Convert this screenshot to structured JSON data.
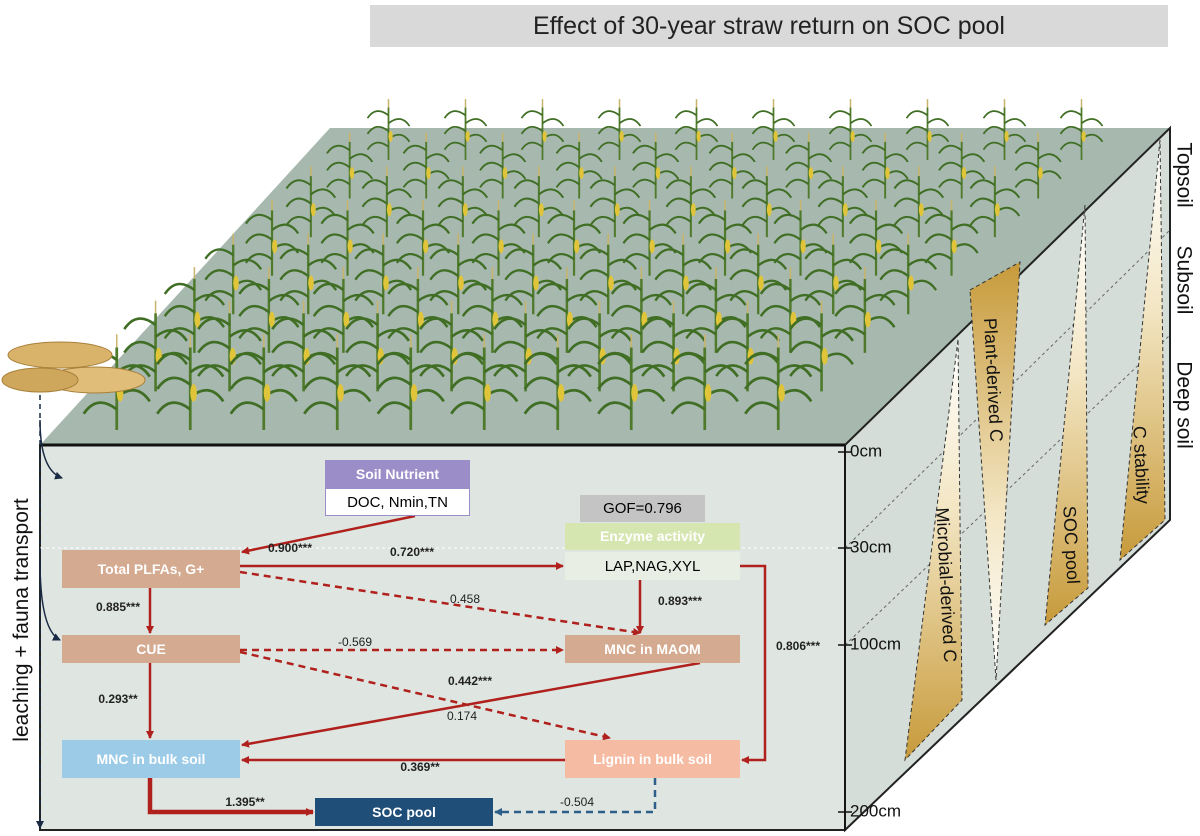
{
  "title": "Effect of 30-year straw return on SOC pool",
  "layers": [
    "Topsoil",
    "Subsoil",
    "Deep soil"
  ],
  "depths": [
    "0cm",
    "30cm",
    "100cm",
    "200cm"
  ],
  "transport_label": "leaching + fauna transport",
  "gof": "GOF=0.796",
  "wedges": [
    "Microbial-derived C",
    "Plant-derived C",
    "SOC pool",
    "C stability"
  ],
  "nodes": [
    {
      "label": "Soil Nutrient",
      "detail": "DOC, Nmin,TN"
    },
    {
      "label": "Enzyme activity",
      "detail": "LAP,NAG,XYL"
    },
    {
      "label": "Total PLFAs, G+"
    },
    {
      "label": "CUE"
    },
    {
      "label": "MNC in MAOM"
    },
    {
      "label": "MNC in bulk soil"
    },
    {
      "label": "Lignin in bulk soil"
    },
    {
      "label": "SOC pool"
    }
  ],
  "edges": [
    "0.900***",
    "0.720***",
    "0.458",
    "0.885***",
    "0.893***",
    "0.806***",
    "-0.569",
    "0.174",
    "0.293**",
    "0.442***",
    "0.369**",
    "1.395**",
    "-0.504"
  ]
}
